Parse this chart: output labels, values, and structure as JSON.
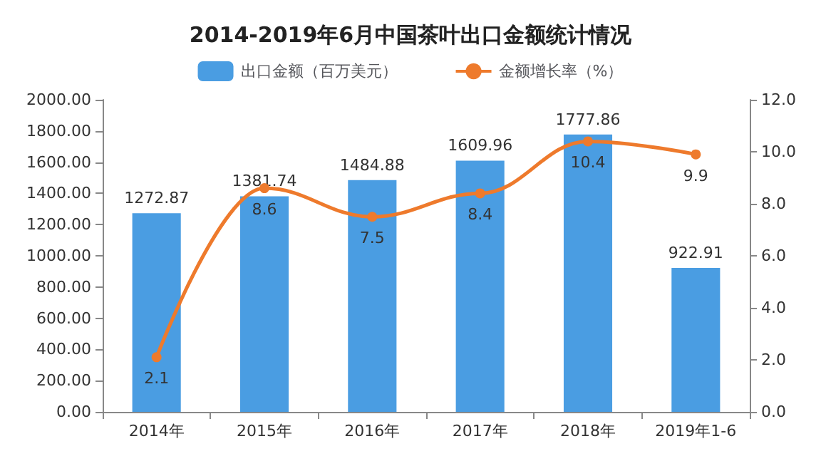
{
  "chart_data": {
    "type": "bar",
    "title": "2014-2019年6月中国茶叶出口金额统计情况",
    "categories": [
      "2014年",
      "2015年",
      "2016年",
      "2017年",
      "2018年",
      "2019年1-6"
    ],
    "series": [
      {
        "name": "出口金额（百万美元）",
        "color": "#4a9de2",
        "values": [
          1272.87,
          1381.74,
          1484.88,
          1609.96,
          1777.86,
          922.91
        ]
      },
      {
        "name": "金额增长率（%）",
        "type": "line",
        "axis": "y2",
        "color": "#ee7a2c",
        "values": [
          2.1,
          8.6,
          7.5,
          8.4,
          10.4,
          9.9
        ]
      }
    ],
    "ylim": [
      0,
      2000
    ],
    "yticks": [
      {
        "value": 0,
        "label": "0.00"
      },
      {
        "value": 200,
        "label": "200.00"
      },
      {
        "value": 400,
        "label": "400.00"
      },
      {
        "value": 600,
        "label": "600.00"
      },
      {
        "value": 800,
        "label": "800.00"
      },
      {
        "value": 1000,
        "label": "1000.00"
      },
      {
        "value": 1200,
        "label": "1200.00"
      },
      {
        "value": 1400,
        "label": "1400.00"
      },
      {
        "value": 1600,
        "label": "1600.00"
      },
      {
        "value": 1800,
        "label": "1800.00"
      },
      {
        "value": 2000,
        "label": "2000.00"
      }
    ],
    "y2lim": [
      0,
      12
    ],
    "y2ticks": [
      {
        "value": 0,
        "label": "0.0"
      },
      {
        "value": 2,
        "label": "2.0"
      },
      {
        "value": 4,
        "label": "4.0"
      },
      {
        "value": 6,
        "label": "6.0"
      },
      {
        "value": 8,
        "label": "8.0"
      },
      {
        "value": 10,
        "label": "10.0"
      },
      {
        "value": 12,
        "label": "12.0"
      }
    ],
    "data_labels": true,
    "legend": "top",
    "marker": "circle",
    "grid": false
  }
}
